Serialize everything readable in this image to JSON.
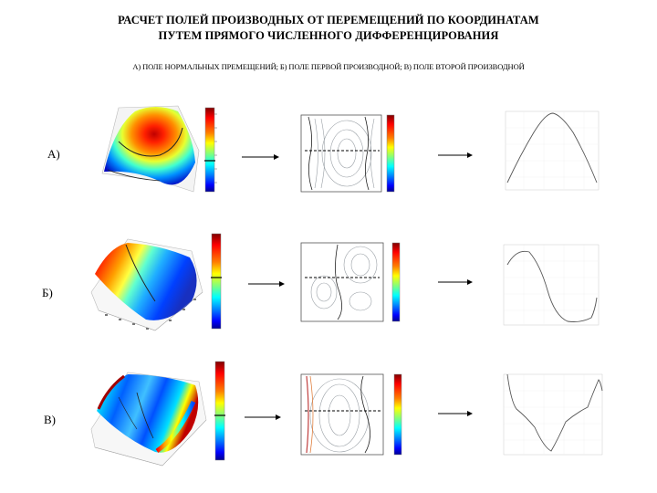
{
  "title_line1": "РАСЧЕТ ПОЛЕЙ ПРОИЗВОДНЫХ ОТ ПЕРЕМЕЩЕНИЙ ПО КООРДИНАТАМ",
  "title_line2": "ПУТЕМ ПРЯМОГО ЧИСЛЕННОГО ДИФФЕРЕНЦИРОВАНИЯ",
  "subtitle": "А) ПОЛЕ НОРМАЛЬНЫХ ПРЕМЕЩЕНИЙ; Б) ПОЛЕ ПЕРВОЙ ПРОИЗВОДНОЙ; В) ПОЛЕ ВТОРОЙ ПРОИЗВОДНОЙ",
  "rows": [
    {
      "label": "А)"
    },
    {
      "label": "Б)"
    },
    {
      "label": "В)"
    }
  ],
  "colors": {
    "jet": [
      "#00008f",
      "#0000ff",
      "#007fff",
      "#00ffff",
      "#7fff7f",
      "#ffff00",
      "#ff7f00",
      "#ff0000",
      "#7f0000"
    ],
    "contour": "#9aa0a6",
    "profile": "#555555"
  }
}
